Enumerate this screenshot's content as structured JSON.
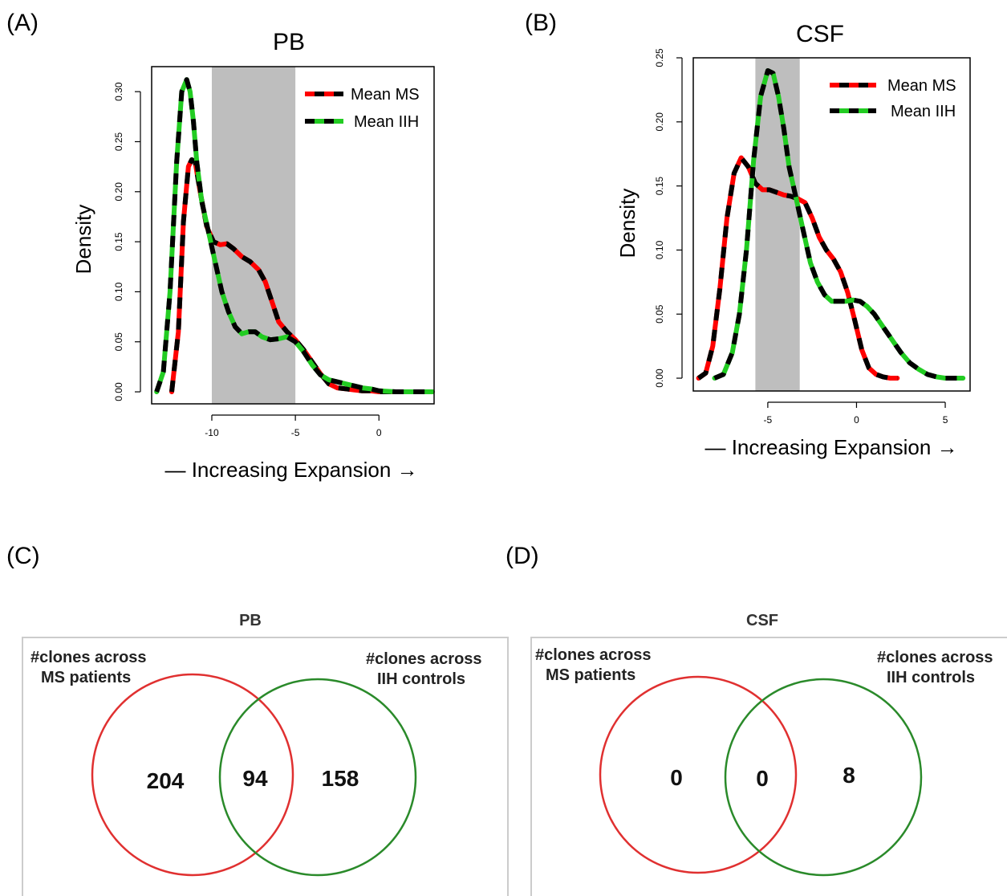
{
  "panels": {
    "A": "(A)",
    "B": "(B)",
    "C": "(C)",
    "D": "(D)"
  },
  "chart_data": [
    {
      "id": "A",
      "type": "line",
      "title": "PB",
      "xlabel": "— Increasing Expansion →",
      "ylabel": "Density",
      "xlim": [
        -13.6,
        3.3
      ],
      "ylim": [
        -0.012,
        0.325
      ],
      "xticks": [
        -10,
        -5,
        0
      ],
      "yticks": [
        0.0,
        0.05,
        0.1,
        0.15,
        0.2,
        0.25,
        0.3
      ],
      "ytick_labels": [
        "0.00",
        "0.05",
        "0.10",
        "0.15",
        "0.20",
        "0.25",
        "0.30"
      ],
      "shaded_region": [
        -10,
        -5
      ],
      "grid": false,
      "legend": {
        "position": "top-right",
        "entries": [
          "Mean MS",
          "Mean IIH"
        ]
      },
      "series": [
        {
          "name": "Mean MS",
          "dash_color": "#ff0000",
          "x": [
            -12.4,
            -12.0,
            -11.7,
            -11.4,
            -11.2,
            -11.0,
            -10.7,
            -10.3,
            -9.9,
            -9.5,
            -9.1,
            -8.7,
            -8.2,
            -7.7,
            -7.2,
            -6.8,
            -6.4,
            -6.0,
            -5.5,
            -5.0,
            -4.5,
            -4.0,
            -3.5,
            -3.0,
            -2.5,
            -2.0,
            -1.5,
            -1.0,
            -0.5,
            0.0,
            1.0,
            2.0,
            3.2
          ],
          "y": [
            0.0,
            0.06,
            0.17,
            0.225,
            0.232,
            0.23,
            0.2,
            0.165,
            0.15,
            0.147,
            0.148,
            0.143,
            0.135,
            0.13,
            0.122,
            0.11,
            0.09,
            0.07,
            0.06,
            0.052,
            0.042,
            0.03,
            0.018,
            0.008,
            0.004,
            0.003,
            0.002,
            0.001,
            0.001,
            0.0,
            0.0,
            0.0,
            0.0
          ]
        },
        {
          "name": "Mean IIH",
          "dash_color": "#22cc22",
          "x": [
            -13.3,
            -12.9,
            -12.5,
            -12.1,
            -11.8,
            -11.5,
            -11.3,
            -11.1,
            -10.9,
            -10.6,
            -10.2,
            -9.8,
            -9.4,
            -9.0,
            -8.6,
            -8.2,
            -7.8,
            -7.4,
            -7.0,
            -6.5,
            -6.0,
            -5.5,
            -5.0,
            -4.5,
            -4.0,
            -3.5,
            -3.0,
            -2.5,
            -2.0,
            -1.5,
            -1.0,
            -0.5,
            0.0,
            1.0,
            2.0,
            3.2
          ],
          "y": [
            0.0,
            0.02,
            0.1,
            0.23,
            0.3,
            0.312,
            0.3,
            0.27,
            0.23,
            0.19,
            0.16,
            0.13,
            0.1,
            0.08,
            0.065,
            0.058,
            0.06,
            0.06,
            0.055,
            0.052,
            0.053,
            0.055,
            0.05,
            0.04,
            0.027,
            0.017,
            0.012,
            0.01,
            0.008,
            0.006,
            0.004,
            0.003,
            0.001,
            0.0,
            0.0,
            0.0
          ]
        }
      ]
    },
    {
      "id": "B",
      "type": "line",
      "title": "CSF",
      "xlabel": "— Increasing Expansion →",
      "ylabel": "Density",
      "xlim": [
        -9.2,
        6.4
      ],
      "ylim": [
        -0.01,
        0.25
      ],
      "xticks": [
        -5,
        0,
        5
      ],
      "yticks": [
        0.0,
        0.05,
        0.1,
        0.15,
        0.2,
        0.25
      ],
      "ytick_labels": [
        "0.00",
        "0.05",
        "0.10",
        "0.15",
        "0.20",
        "0.25"
      ],
      "shaded_region": [
        -5.7,
        -3.2
      ],
      "grid": false,
      "legend": {
        "position": "top-right",
        "entries": [
          "Mean MS",
          "Mean IIH"
        ]
      },
      "series": [
        {
          "name": "Mean MS",
          "dash_color": "#ff0000",
          "x": [
            -8.9,
            -8.5,
            -8.1,
            -7.7,
            -7.3,
            -6.9,
            -6.5,
            -6.1,
            -5.7,
            -5.3,
            -4.9,
            -4.5,
            -4.1,
            -3.7,
            -3.3,
            -2.9,
            -2.5,
            -2.1,
            -1.7,
            -1.3,
            -0.9,
            -0.5,
            -0.1,
            0.3,
            0.7,
            1.1,
            1.5,
            1.9,
            2.3
          ],
          "y": [
            0.0,
            0.004,
            0.025,
            0.07,
            0.125,
            0.16,
            0.172,
            0.165,
            0.152,
            0.147,
            0.147,
            0.145,
            0.143,
            0.142,
            0.14,
            0.137,
            0.125,
            0.11,
            0.1,
            0.093,
            0.083,
            0.067,
            0.045,
            0.022,
            0.008,
            0.003,
            0.001,
            0.0,
            0.0
          ]
        },
        {
          "name": "Mean IIH",
          "dash_color": "#22cc22",
          "x": [
            -8.0,
            -7.5,
            -7.0,
            -6.6,
            -6.2,
            -5.8,
            -5.4,
            -5.0,
            -4.7,
            -4.4,
            -4.1,
            -3.8,
            -3.4,
            -3.0,
            -2.6,
            -2.2,
            -1.8,
            -1.4,
            -1.0,
            -0.6,
            -0.2,
            0.2,
            0.6,
            1.0,
            1.5,
            2.0,
            2.5,
            3.0,
            3.5,
            4.0,
            4.5,
            5.0,
            5.5,
            6.0
          ],
          "y": [
            0.0,
            0.003,
            0.02,
            0.05,
            0.1,
            0.17,
            0.22,
            0.24,
            0.238,
            0.22,
            0.195,
            0.165,
            0.14,
            0.115,
            0.09,
            0.075,
            0.065,
            0.06,
            0.06,
            0.06,
            0.061,
            0.06,
            0.056,
            0.05,
            0.04,
            0.03,
            0.02,
            0.012,
            0.007,
            0.003,
            0.001,
            0.0,
            0.0,
            0.0
          ]
        }
      ]
    }
  ],
  "venns": [
    {
      "id": "C",
      "title": "PB",
      "left_set": [
        "#clones across",
        "MS patients"
      ],
      "right_set": [
        "#clones across",
        "IIH controls"
      ],
      "left_only": "204",
      "overlap": "94",
      "right_only": "158",
      "left_color": "#e03030",
      "right_color": "#2a8a2a"
    },
    {
      "id": "D",
      "title": "CSF",
      "left_set": [
        "#clones across",
        "MS patients"
      ],
      "right_set": [
        "#clones across",
        "IIH controls"
      ],
      "left_only": "0",
      "overlap": "0",
      "right_only": "8",
      "left_color": "#e03030",
      "right_color": "#2a8a2a"
    }
  ]
}
